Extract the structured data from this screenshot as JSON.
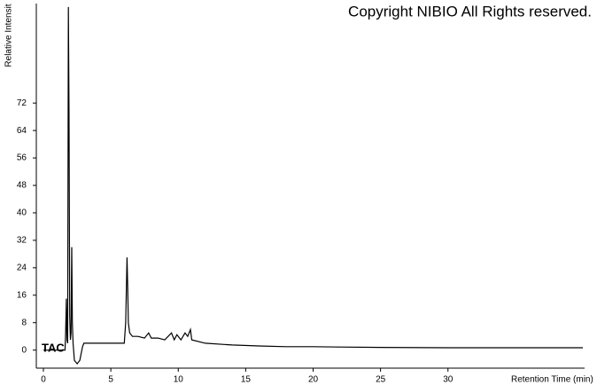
{
  "chart_data": {
    "type": "line",
    "title": "Copyright NIBIO All Rights reserved.",
    "x_label": "Retention Time (min)",
    "y_label": "Relative Intensit",
    "x": [
      0,
      1.6,
      1.65,
      1.7,
      1.75,
      1.8,
      1.85,
      1.9,
      1.95,
      2.0,
      2.05,
      2.1,
      2.15,
      2.2,
      2.3,
      2.5,
      2.7,
      2.9,
      3.0,
      3.2,
      4,
      5,
      6,
      6.1,
      6.2,
      6.25,
      6.3,
      6.4,
      6.6,
      7,
      7.5,
      7.8,
      8,
      8.5,
      9,
      9.5,
      9.7,
      9.9,
      10.2,
      10.5,
      10.7,
      10.9,
      11,
      12,
      14,
      16,
      18,
      20,
      22,
      25,
      30,
      35,
      40
    ],
    "series": [
      {
        "name": "TAC",
        "color": "#000000",
        "values": [
          0,
          0,
          5,
          15,
          3,
          2,
          100,
          70,
          10,
          3,
          5,
          30,
          8,
          2,
          -3,
          -4,
          -3,
          1,
          2,
          2,
          2,
          2,
          2,
          8,
          27,
          18,
          8,
          5,
          4,
          4,
          3.5,
          5,
          3.5,
          3.5,
          3,
          5,
          3,
          4.5,
          3,
          5,
          4,
          6,
          3,
          2,
          1.5,
          1.2,
          1,
          1,
          0.9,
          0.8,
          0.7,
          0.7,
          0.7
        ]
      }
    ],
    "xlim": [
      0,
      40
    ],
    "ylim": [
      -5,
      101
    ],
    "xticks": [
      0,
      5,
      10,
      15,
      20,
      25,
      30
    ],
    "yticks": [
      0,
      8,
      16,
      24,
      32,
      40,
      48,
      56,
      64,
      72
    ]
  }
}
